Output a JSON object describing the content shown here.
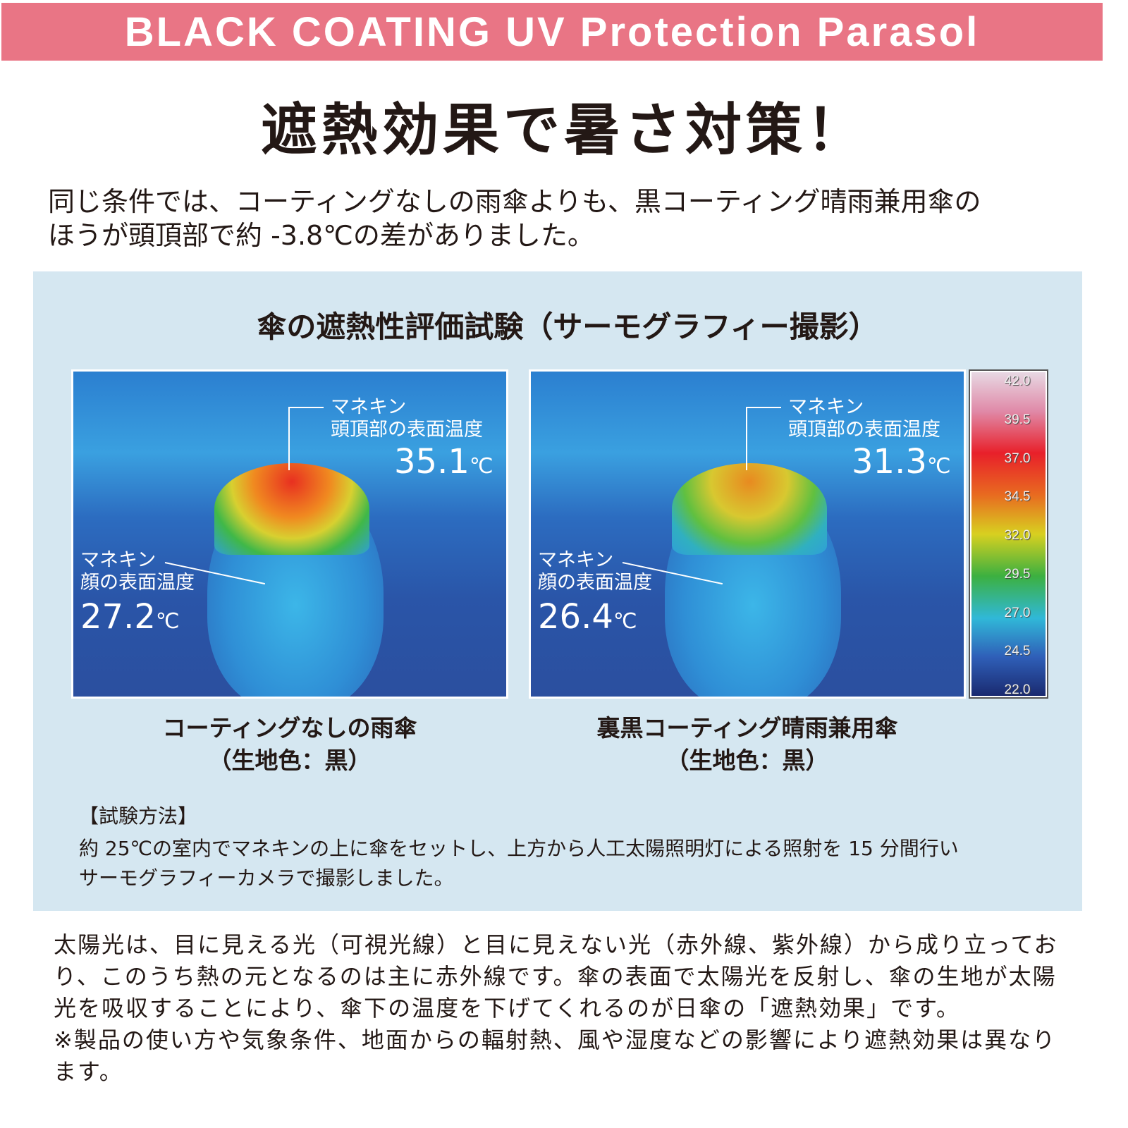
{
  "header": {
    "title": "BLACK COATING UV Protection Parasol"
  },
  "headline": "遮熱効果で暑さ対策！",
  "intro": [
    "同じ条件では、コーティングなしの雨傘よりも、黒コーティング晴雨兼用傘の",
    "ほうが頭頂部で約 -3.8℃の差がありました。"
  ],
  "panel": {
    "title": "傘の遮熱性評価試験（サーモグラフィー撮影）",
    "images": [
      {
        "head_label": [
          "マネキン",
          "頭頂部の表面温度"
        ],
        "head_temp": "35.1",
        "face_label": [
          "マネキン",
          "顔の表面温度"
        ],
        "face_temp": "27.2",
        "unit": "℃",
        "caption": [
          "コーティングなしの雨傘",
          "（生地色：黒）"
        ],
        "head_colors": [
          "#e83020",
          "#f08a20",
          "#d8d030",
          "#40b848"
        ]
      },
      {
        "head_label": [
          "マネキン",
          "頭頂部の表面温度"
        ],
        "head_temp": "31.3",
        "face_label": [
          "マネキン",
          "顔の表面温度"
        ],
        "face_temp": "26.4",
        "unit": "℃",
        "caption": [
          "裏黒コーティング晴雨兼用傘",
          "（生地色：黒）"
        ],
        "head_colors": [
          "#e88a20",
          "#d8c830",
          "#60c040",
          "#30b0c0"
        ]
      }
    ],
    "colorbar_ticks": [
      "42.0",
      "39.5",
      "37.0",
      "34.5",
      "32.0",
      "29.5",
      "27.0",
      "24.5",
      "22.0"
    ],
    "method": {
      "heading": "【試験方法】",
      "lines": [
        "約 25℃の室内でマネキンの上に傘をセットし、上方から人工太陽照明灯による照射を 15 分間行い",
        "サーモグラフィーカメラで撮影しました。"
      ]
    }
  },
  "footer": [
    "太陽光は、目に見える光（可視光線）と目に見えない光（赤外線、紫外線）から成り立ってお",
    "り、このうち熱の元となるのは主に赤外線です。傘の表面で太陽光を反射し、傘の生地が太陽",
    "光を吸収することにより、傘下の温度を下げてくれるのが日傘の「遮熱効果」です。",
    "※製品の使い方や気象条件、地面からの輻射熱、風や湿度などの影響により遮熱効果は異なり",
    "ます。"
  ],
  "colors": {
    "header": "#e97585",
    "panel": "#d5e7f1"
  }
}
